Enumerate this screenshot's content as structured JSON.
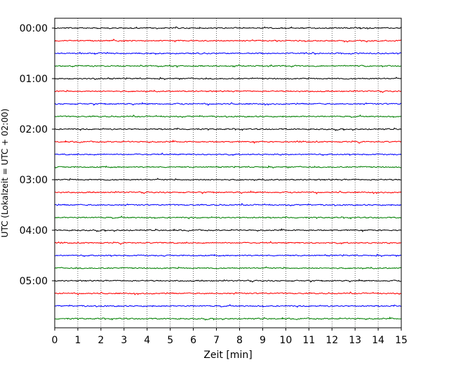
{
  "chart_data": {
    "type": "line",
    "subtype": "helicorder",
    "xlabel": "Zeit  [min]",
    "ylabel": "UTC (Lokalzeit = UTC + 02:00)",
    "xlim": [
      0,
      15
    ],
    "x_ticks": [
      "0",
      "1",
      "2",
      "3",
      "4",
      "5",
      "6",
      "7",
      "8",
      "9",
      "10",
      "11",
      "12",
      "13",
      "14",
      "15"
    ],
    "y_tick_labels": [
      "00:00",
      "01:00",
      "02:00",
      "03:00",
      "04:00",
      "05:00"
    ],
    "trace_interval_minutes": 15,
    "trace_count": 24,
    "trace_colors": [
      "#000000",
      "#ff0000",
      "#0000ff",
      "#007f00"
    ],
    "vertical_grid": true,
    "grid_style": "dotted",
    "traces": [
      {
        "start": "00:00",
        "color": "#000000"
      },
      {
        "start": "00:15",
        "color": "#ff0000"
      },
      {
        "start": "00:30",
        "color": "#0000ff"
      },
      {
        "start": "00:45",
        "color": "#007f00"
      },
      {
        "start": "01:00",
        "color": "#000000"
      },
      {
        "start": "01:15",
        "color": "#ff0000"
      },
      {
        "start": "01:30",
        "color": "#0000ff"
      },
      {
        "start": "01:45",
        "color": "#007f00"
      },
      {
        "start": "02:00",
        "color": "#000000"
      },
      {
        "start": "02:15",
        "color": "#ff0000"
      },
      {
        "start": "02:30",
        "color": "#0000ff"
      },
      {
        "start": "02:45",
        "color": "#007f00"
      },
      {
        "start": "03:00",
        "color": "#000000"
      },
      {
        "start": "03:15",
        "color": "#ff0000"
      },
      {
        "start": "03:30",
        "color": "#0000ff"
      },
      {
        "start": "03:45",
        "color": "#007f00"
      },
      {
        "start": "04:00",
        "color": "#000000"
      },
      {
        "start": "04:15",
        "color": "#ff0000"
      },
      {
        "start": "04:30",
        "color": "#0000ff"
      },
      {
        "start": "04:45",
        "color": "#007f00"
      },
      {
        "start": "05:00",
        "color": "#000000"
      },
      {
        "start": "05:15",
        "color": "#ff0000"
      },
      {
        "start": "05:30",
        "color": "#0000ff"
      },
      {
        "start": "05:45",
        "color": "#007f00"
      }
    ]
  }
}
